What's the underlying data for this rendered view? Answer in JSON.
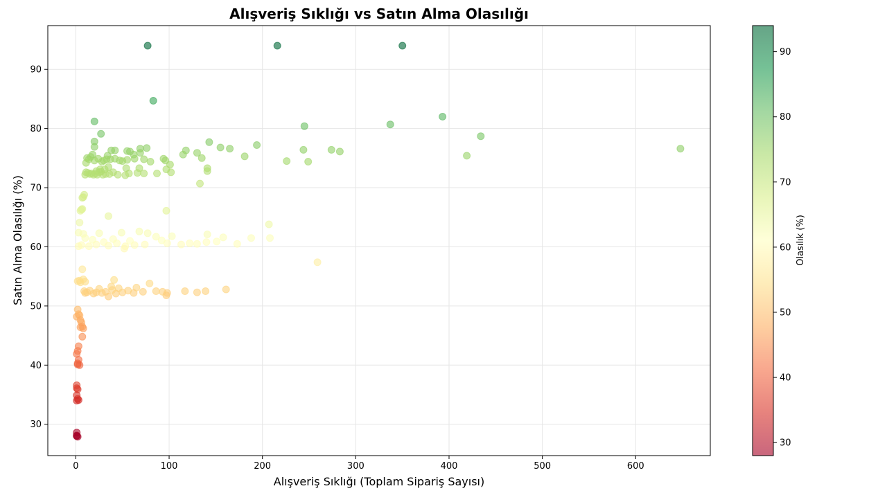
{
  "chart_data": {
    "type": "scatter",
    "title": "Alışveriş Sıklığı vs Satın Alma Olasılığı",
    "xlabel": "Alışveriş Sıklığı (Toplam Sipariş Sayısı)",
    "ylabel": "Satın Alma Olasılığı (%)",
    "xlim": [
      -30,
      680
    ],
    "ylim": [
      24.7,
      97.4
    ],
    "x_ticks": [
      0,
      100,
      200,
      300,
      400,
      500,
      600
    ],
    "y_ticks": [
      30,
      40,
      50,
      60,
      70,
      80,
      90
    ],
    "grid": true,
    "colormap": "RdYlGn",
    "marker_alpha": 0.6,
    "colorbar": {
      "label": "Olasılık (%)",
      "min": 28,
      "max": 94,
      "ticks": [
        30,
        40,
        50,
        60,
        70,
        80,
        90
      ],
      "placement": "right"
    },
    "points": [
      [
        77,
        94
      ],
      [
        216,
        94
      ],
      [
        350,
        94
      ],
      [
        83,
        84.7
      ],
      [
        20,
        81.2
      ],
      [
        393,
        82
      ],
      [
        337,
        80.7
      ],
      [
        245,
        80.4
      ],
      [
        434,
        78.7
      ],
      [
        27,
        79.1
      ],
      [
        648,
        76.6
      ],
      [
        419,
        75.4
      ],
      [
        283,
        76.1
      ],
      [
        274,
        76.4
      ],
      [
        244,
        76.4
      ],
      [
        226,
        74.5
      ],
      [
        249,
        74.4
      ],
      [
        194,
        77.2
      ],
      [
        181,
        75.3
      ],
      [
        165,
        76.6
      ],
      [
        155,
        76.8
      ],
      [
        143,
        77.7
      ],
      [
        135,
        75
      ],
      [
        130,
        75.9
      ],
      [
        118,
        76.3
      ],
      [
        115,
        75.6
      ],
      [
        141,
        73.3
      ],
      [
        141,
        72.8
      ],
      [
        133,
        70.7
      ],
      [
        102,
        72.6
      ],
      [
        101,
        73.9
      ],
      [
        97,
        73.1
      ],
      [
        96,
        74.6
      ],
      [
        94,
        74.9
      ],
      [
        87,
        72.4
      ],
      [
        80,
        74.4
      ],
      [
        76,
        76.7
      ],
      [
        73,
        74.8
      ],
      [
        73,
        72.4
      ],
      [
        69,
        76.6
      ],
      [
        69,
        75.9
      ],
      [
        68,
        73.3
      ],
      [
        66,
        72.5
      ],
      [
        63,
        74.9
      ],
      [
        62,
        75.6
      ],
      [
        58,
        76.1
      ],
      [
        57,
        72.4
      ],
      [
        55,
        76.2
      ],
      [
        55,
        74.7
      ],
      [
        54,
        73.3
      ],
      [
        53,
        72.1
      ],
      [
        50,
        74.5
      ],
      [
        47,
        74.6
      ],
      [
        45,
        72.2
      ],
      [
        42,
        76.3
      ],
      [
        42,
        74.9
      ],
      [
        40,
        72.6
      ],
      [
        38,
        76.3
      ],
      [
        37,
        74.8
      ],
      [
        36,
        72.3
      ],
      [
        35,
        73.5
      ],
      [
        34,
        75.4
      ],
      [
        33,
        74.8
      ],
      [
        32,
        72.3
      ],
      [
        31,
        73.1
      ],
      [
        30,
        74.6
      ],
      [
        29,
        72.2
      ],
      [
        28,
        74.4
      ],
      [
        27,
        72.7
      ],
      [
        26,
        73.1
      ],
      [
        25,
        72.6
      ],
      [
        24,
        74.9
      ],
      [
        23,
        72.2
      ],
      [
        22,
        72.8
      ],
      [
        21,
        72.4
      ],
      [
        20,
        77.8
      ],
      [
        20,
        76.9
      ],
      [
        20,
        74.6
      ],
      [
        19,
        72.2
      ],
      [
        18,
        75.6
      ],
      [
        17,
        72.4
      ],
      [
        16,
        75.2
      ],
      [
        15,
        72.3
      ],
      [
        14,
        74.8
      ],
      [
        13,
        72.5
      ],
      [
        12,
        75
      ],
      [
        11,
        74.2
      ],
      [
        11,
        72.6
      ],
      [
        10,
        72.2
      ],
      [
        9,
        68.8
      ],
      [
        8,
        68.4
      ],
      [
        7,
        66.4
      ],
      [
        7,
        68.3
      ],
      [
        6,
        66.3
      ],
      [
        5,
        66.1
      ],
      [
        4,
        64.1
      ],
      [
        3,
        62.4
      ],
      [
        8,
        62.2
      ],
      [
        35,
        65.2
      ],
      [
        97,
        66.1
      ],
      [
        207,
        63.8
      ],
      [
        208,
        61.5
      ],
      [
        188,
        61.5
      ],
      [
        173,
        60.5
      ],
      [
        158,
        61.6
      ],
      [
        151,
        60.9
      ],
      [
        141,
        62.1
      ],
      [
        140,
        60.8
      ],
      [
        130,
        60.5
      ],
      [
        122,
        60.6
      ],
      [
        113,
        60.4
      ],
      [
        103,
        61.8
      ],
      [
        98,
        60.6
      ],
      [
        92,
        61.1
      ],
      [
        86,
        61.7
      ],
      [
        77,
        62.3
      ],
      [
        74,
        60.4
      ],
      [
        68,
        62.6
      ],
      [
        63,
        60.3
      ],
      [
        58,
        61
      ],
      [
        53,
        60.1
      ],
      [
        52,
        59.7
      ],
      [
        49,
        62.4
      ],
      [
        44,
        60.6
      ],
      [
        40,
        61.3
      ],
      [
        35,
        60.2
      ],
      [
        30,
        60.8
      ],
      [
        25,
        62.3
      ],
      [
        22,
        60.4
      ],
      [
        18,
        61.2
      ],
      [
        14,
        60.1
      ],
      [
        10,
        61.5
      ],
      [
        6,
        60.3
      ],
      [
        3,
        60.1
      ],
      [
        259,
        57.4
      ],
      [
        7,
        56.2
      ],
      [
        4,
        54.3
      ],
      [
        8,
        54.5
      ],
      [
        5,
        54
      ],
      [
        2,
        54.2
      ],
      [
        10,
        54.1
      ],
      [
        41,
        54.4
      ],
      [
        79,
        53.8
      ],
      [
        38,
        53.3
      ],
      [
        65,
        53.1
      ],
      [
        161,
        52.8
      ],
      [
        139,
        52.5
      ],
      [
        130,
        52.3
      ],
      [
        117,
        52.5
      ],
      [
        98,
        52.2
      ],
      [
        97,
        51.8
      ],
      [
        93,
        52.4
      ],
      [
        86,
        52.5
      ],
      [
        72,
        52.4
      ],
      [
        62,
        52.2
      ],
      [
        56,
        52.6
      ],
      [
        50,
        52.3
      ],
      [
        46,
        53
      ],
      [
        43,
        52.1
      ],
      [
        39,
        52.7
      ],
      [
        35,
        51.6
      ],
      [
        32,
        52.4
      ],
      [
        28,
        52.2
      ],
      [
        25,
        52.9
      ],
      [
        22,
        52.3
      ],
      [
        19,
        52.1
      ],
      [
        15,
        52.6
      ],
      [
        12,
        52.3
      ],
      [
        10,
        52.2
      ],
      [
        9,
        52.5
      ],
      [
        2,
        49.4
      ],
      [
        3,
        48.6
      ],
      [
        1,
        48.2
      ],
      [
        4,
        48.4
      ],
      [
        5,
        47.6
      ],
      [
        6,
        47.2
      ],
      [
        7,
        46.5
      ],
      [
        8,
        46.2
      ],
      [
        5,
        46.4
      ],
      [
        7,
        44.8
      ],
      [
        3,
        43.2
      ],
      [
        2,
        42.4
      ],
      [
        1,
        41.9
      ],
      [
        3,
        40.9
      ],
      [
        2,
        40.3
      ],
      [
        4,
        40
      ],
      [
        2,
        40.1
      ],
      [
        1,
        36.6
      ],
      [
        1,
        36.1
      ],
      [
        2,
        35.9
      ],
      [
        1,
        34.9
      ],
      [
        2,
        34.3
      ],
      [
        1,
        34
      ],
      [
        3,
        34.1
      ],
      [
        1,
        28.6
      ],
      [
        1,
        28.1
      ],
      [
        2,
        27.9
      ],
      [
        1,
        28
      ]
    ]
  }
}
